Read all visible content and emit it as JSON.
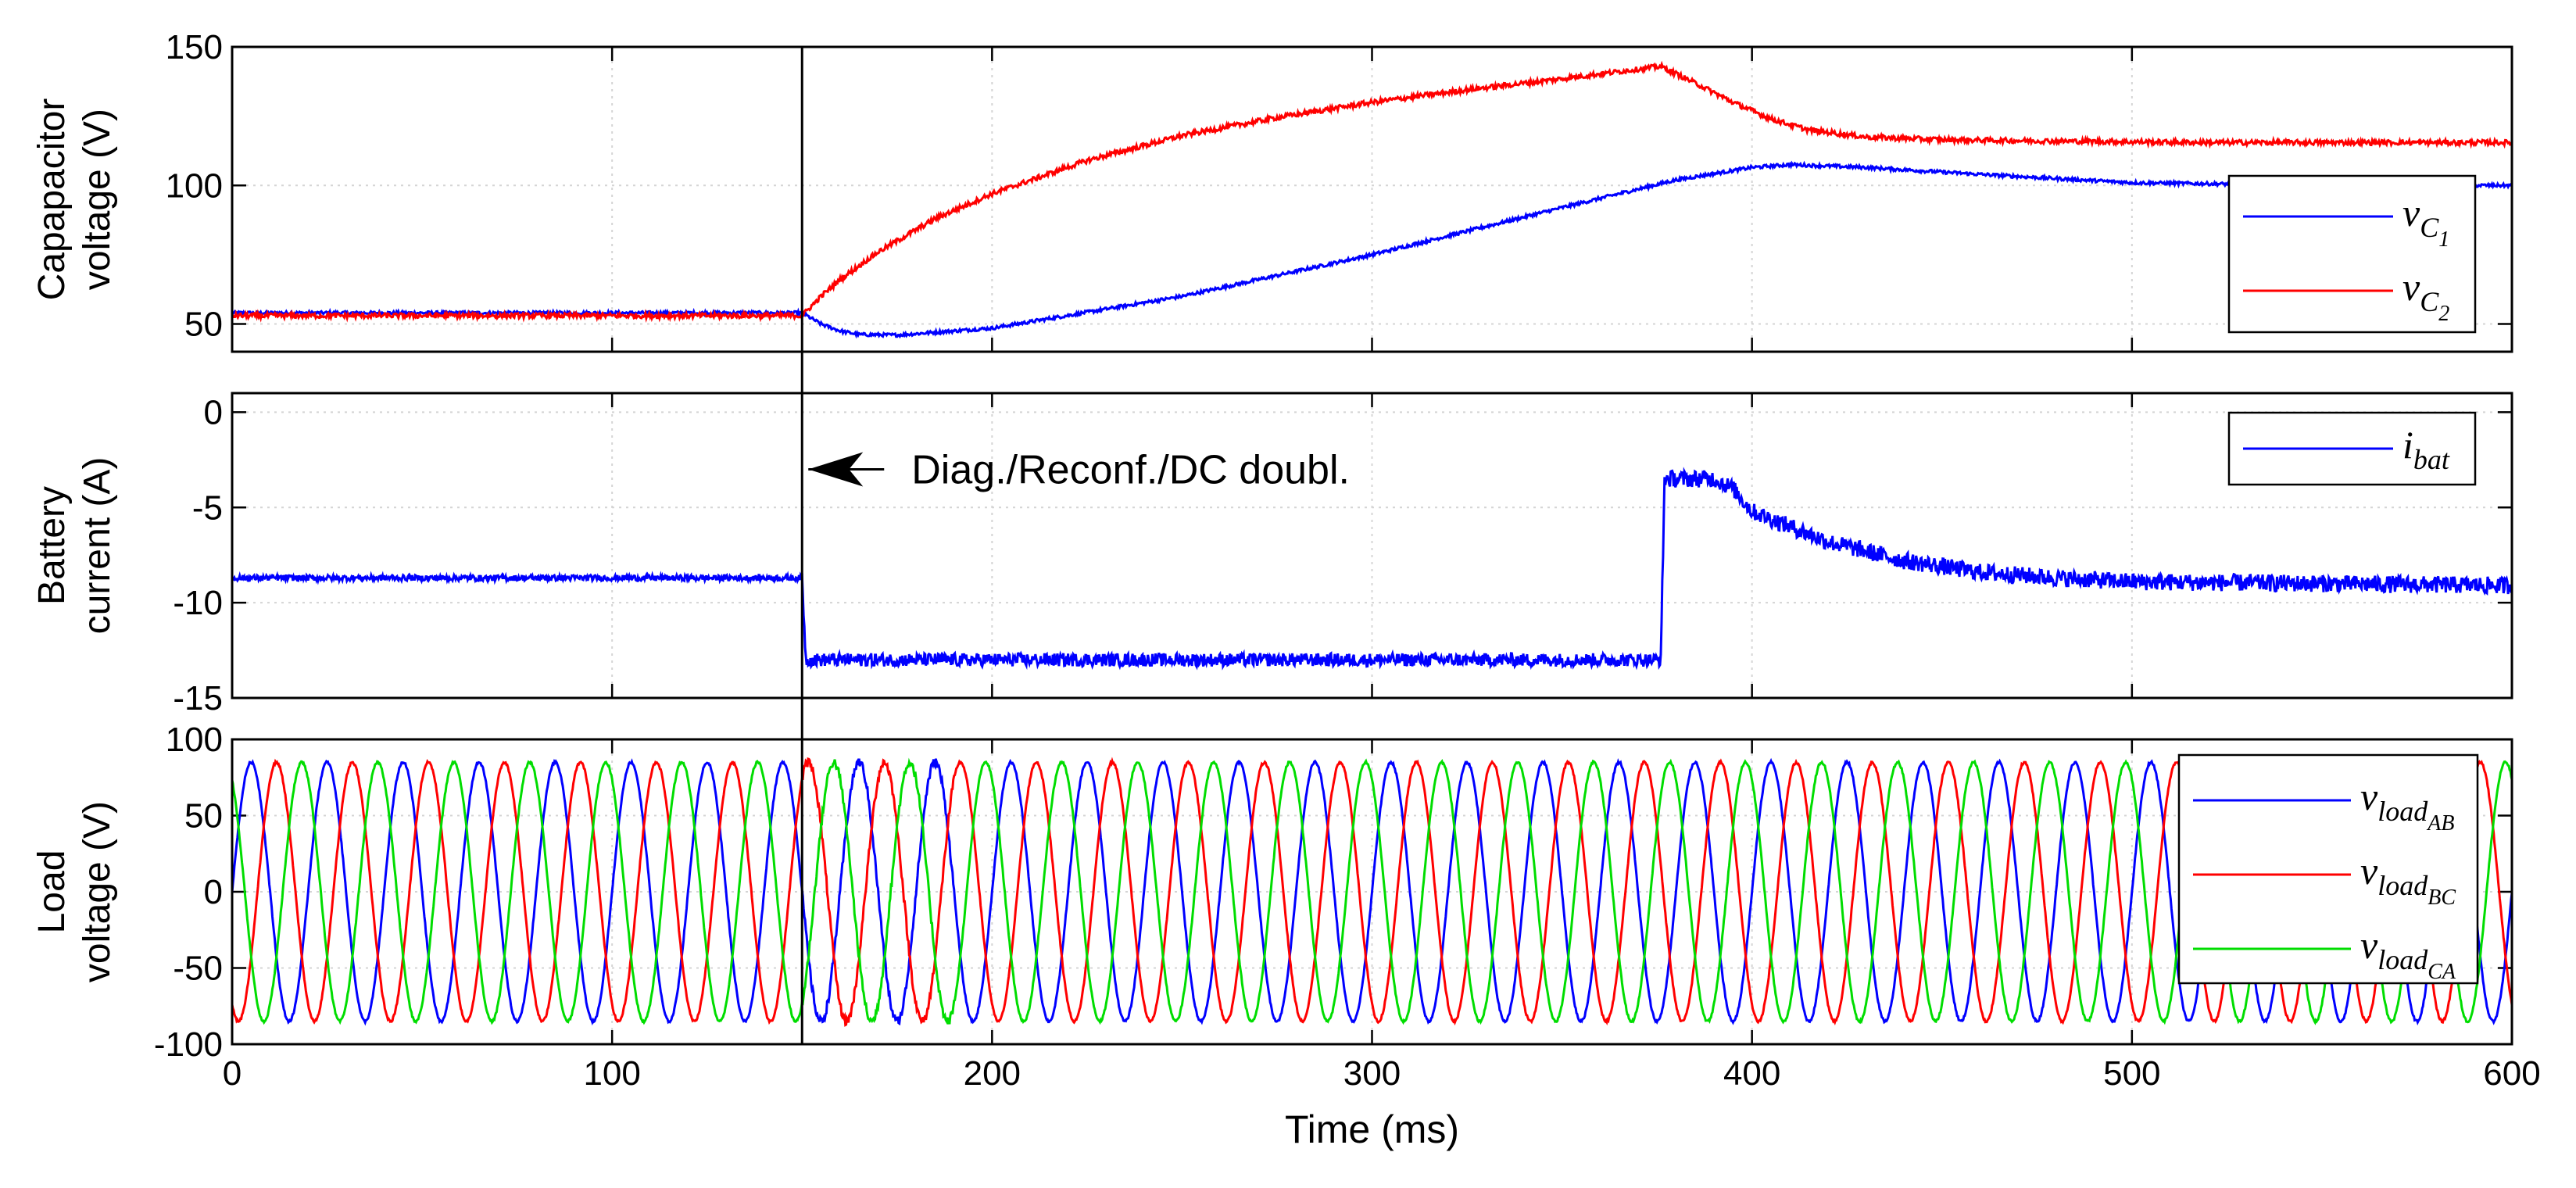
{
  "chart_data": [
    {
      "type": "line",
      "panel": "top",
      "ylabel": [
        "Capapacitor",
        "voltage (V)"
      ],
      "xlim": [
        0,
        600
      ],
      "ylim": [
        40,
        150
      ],
      "yticks": [
        50,
        100,
        150
      ],
      "ytick_labels": [
        "50",
        "100",
        "150"
      ],
      "xticks": [
        0,
        100,
        200,
        300,
        400,
        500,
        600
      ],
      "grid": true,
      "legend_position": "right",
      "series": [
        {
          "name": "v_C1",
          "label_main": "v",
          "label_sub": "C",
          "label_subsub": "1",
          "color": "#0000ff",
          "x": [
            0,
            150,
            155,
            160,
            165,
            175,
            200,
            250,
            300,
            350,
            380,
            400,
            410,
            430,
            460,
            500,
            550,
            600
          ],
          "y": [
            54,
            54,
            50,
            47.5,
            46.2,
            46,
            48.5,
            60,
            75,
            92,
            102,
            106.5,
            107.5,
            106.5,
            104,
            101,
            100,
            100
          ],
          "noise": 0.6
        },
        {
          "name": "v_C2",
          "label_main": "v",
          "label_sub": "C",
          "label_subsub": "2",
          "color": "#ff0000",
          "x": [
            0,
            150,
            155,
            160,
            170,
            185,
            200,
            225,
            250,
            275,
            300,
            325,
            350,
            376,
            385,
            395,
            405,
            415,
            430,
            450,
            480,
            520,
            600
          ],
          "y": [
            53,
            53,
            60,
            66,
            76,
            88,
            97,
            109,
            118,
            124.5,
            130,
            134.5,
            138.5,
            143,
            137,
            130,
            124,
            120,
            117.5,
            116.5,
            116,
            115.5,
            115.5
          ],
          "noise": 0.9
        }
      ]
    },
    {
      "type": "line",
      "panel": "middle",
      "ylabel": [
        "Battery",
        "current (A)"
      ],
      "xlim": [
        0,
        600
      ],
      "ylim": [
        -15,
        1
      ],
      "yticks": [
        0,
        -5,
        -10,
        -15
      ],
      "ytick_labels": [
        "0",
        "-5",
        "-10",
        "-15"
      ],
      "xticks": [
        0,
        100,
        200,
        300,
        400,
        500,
        600
      ],
      "grid": true,
      "legend_position": "top-right",
      "annotation": {
        "text": "Diag./Reconf./DC doubl.",
        "at_x": 150,
        "at_y": -3
      },
      "series": [
        {
          "name": "i_bat",
          "label_main": "i",
          "label_sub": "bat",
          "color": "#0000ff",
          "x": [
            0,
            150,
            151,
            376,
            377,
            390,
            395,
            400,
            420,
            440,
            460,
            480,
            500,
            550,
            600
          ],
          "y": [
            -8.7,
            -8.7,
            -13,
            -13,
            -3.5,
            -3.5,
            -4.0,
            -5.2,
            -6.8,
            -7.8,
            -8.4,
            -8.7,
            -8.9,
            -9.0,
            -9.1
          ],
          "noise_by_x": [
            [
              0,
              150,
              0.15
            ],
            [
              150,
              376,
              0.35
            ],
            [
              376,
              600,
              0.45
            ]
          ]
        }
      ]
    },
    {
      "type": "line",
      "panel": "bottom",
      "ylabel": [
        "Load",
        "voltage (V)"
      ],
      "xlabel": "Time (ms)",
      "xlim": [
        0,
        600
      ],
      "ylim": [
        -100,
        100
      ],
      "yticks": [
        100,
        50,
        0,
        -50,
        -100
      ],
      "ytick_labels": [
        "100",
        "50",
        "0",
        "-50",
        "-100"
      ],
      "xticks": [
        0,
        100,
        200,
        300,
        400,
        500,
        600
      ],
      "xtick_labels": [
        "0",
        "100",
        "200",
        "300",
        "400",
        "500",
        "600"
      ],
      "grid": true,
      "legend_position": "right",
      "sine": {
        "amplitude": 85,
        "frequency_hz": 50,
        "phase_deg": [
          0,
          -120,
          120
        ]
      },
      "series": [
        {
          "name": "v_load_AB",
          "label_main": "v",
          "label_sub": "load",
          "label_subsub": "AB",
          "color": "#0000ff"
        },
        {
          "name": "v_load_BC",
          "label_main": "v",
          "label_sub": "load",
          "label_subsub": "BC",
          "color": "#ff0000"
        },
        {
          "name": "v_load_CA",
          "label_main": "v",
          "label_sub": "load",
          "label_subsub": "CA",
          "color": "#00dd00"
        }
      ]
    }
  ],
  "event_marker_x": 150
}
